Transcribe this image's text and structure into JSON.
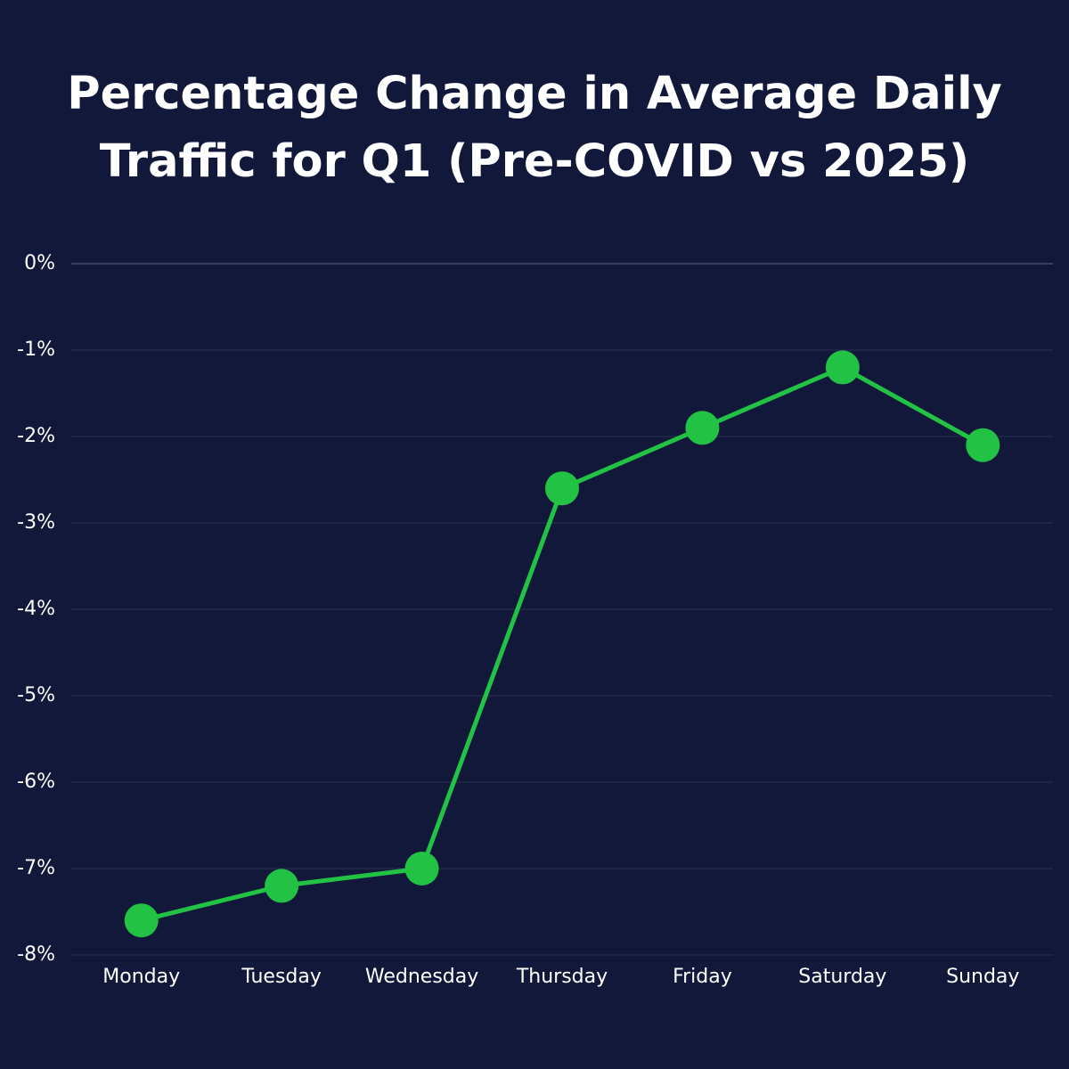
{
  "chart_data": {
    "type": "line",
    "title": "Percentage Change in Average Daily Traffic for Q1 (Pre-COVID vs 2025)",
    "categories": [
      "Monday",
      "Tuesday",
      "Wednesday",
      "Thursday",
      "Friday",
      "Saturday",
      "Sunday"
    ],
    "values": [
      -7.6,
      -7.2,
      -7.0,
      -2.6,
      -1.9,
      -1.2,
      -2.1
    ],
    "color": "#22c244",
    "ylim": [
      -8,
      0
    ],
    "yticks": [
      {
        "value": 0,
        "label": "0%"
      },
      {
        "value": -1,
        "label": "-1%"
      },
      {
        "value": -2,
        "label": "-2%"
      },
      {
        "value": -3,
        "label": "-3%"
      },
      {
        "value": -4,
        "label": "-4%"
      },
      {
        "value": -5,
        "label": "-5%"
      },
      {
        "value": -6,
        "label": "-6%"
      },
      {
        "value": -7,
        "label": "-7%"
      },
      {
        "value": -8,
        "label": "-8%"
      }
    ],
    "grid": true
  }
}
